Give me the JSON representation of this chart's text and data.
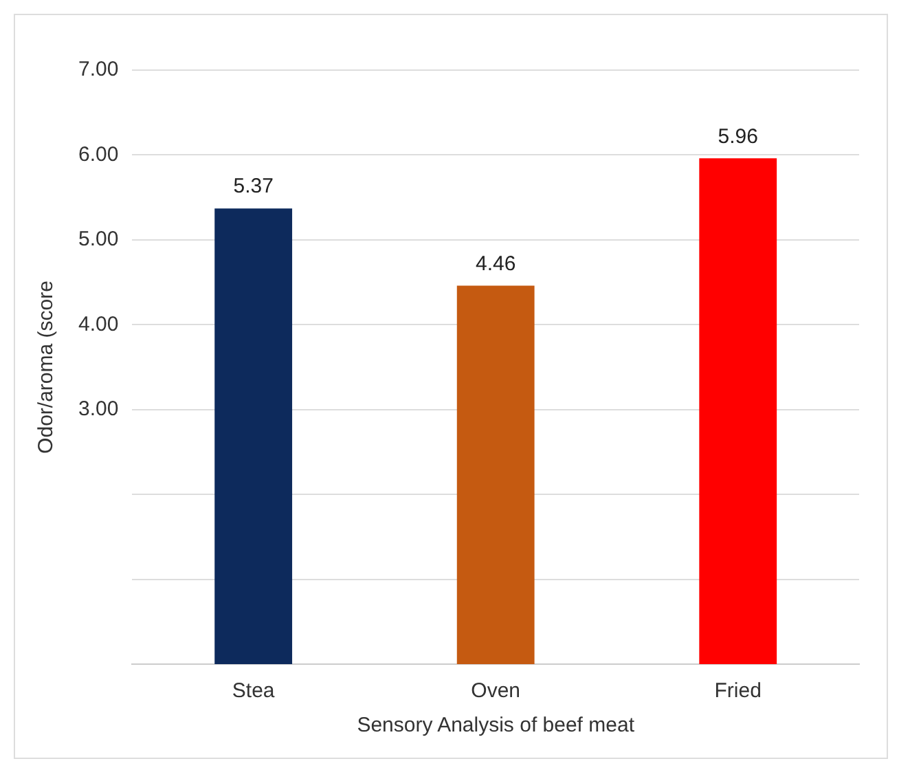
{
  "chart_data": {
    "type": "bar",
    "xlabel": "Sensory Analysis of beef meat",
    "ylabel": "Odor/aroma (score",
    "categories": [
      "Stea",
      "Oven",
      "Fried"
    ],
    "values": [
      5.37,
      4.46,
      5.96
    ],
    "colors": [
      "#0d2a5c",
      "#c55a11",
      "#ff0000"
    ],
    "ylim": [
      0,
      7
    ],
    "yticks": [
      {
        "value": 1,
        "label": null
      },
      {
        "value": 2,
        "label": null
      },
      {
        "value": 3,
        "label": "3.00"
      },
      {
        "value": 4,
        "label": "4.00"
      },
      {
        "value": 5,
        "label": "5.00"
      },
      {
        "value": 6,
        "label": "6.00"
      },
      {
        "value": 7,
        "label": "7.00"
      }
    ],
    "grid": "y",
    "data_labels": true
  }
}
